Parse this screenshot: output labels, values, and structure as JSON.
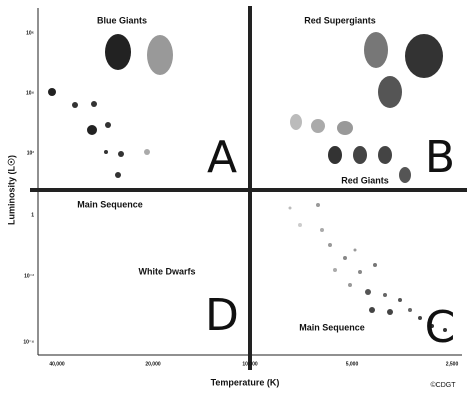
{
  "regions": [
    {
      "letter": "A",
      "labels": [
        "Blue Giants",
        "Main Sequence"
      ]
    },
    {
      "letter": "B",
      "labels": [
        "Red Supergiants",
        "Red Giants"
      ]
    },
    {
      "letter": "C",
      "labels": [
        "Main Sequence"
      ]
    },
    {
      "letter": "D",
      "labels": [
        "White Dwarfs"
      ]
    }
  ],
  "y_axis": {
    "title": "Luminosity (L☉)",
    "ticks": [
      "10⁶",
      "10⁴",
      "10²",
      "1",
      "10⁻²",
      "10⁻⁴"
    ]
  },
  "x_axis": {
    "title": "Temperature (K)",
    "ticks": [
      "40,000",
      "20,000",
      "10,000",
      "5,000",
      "2,500"
    ]
  },
  "credit": "©CDGT"
}
